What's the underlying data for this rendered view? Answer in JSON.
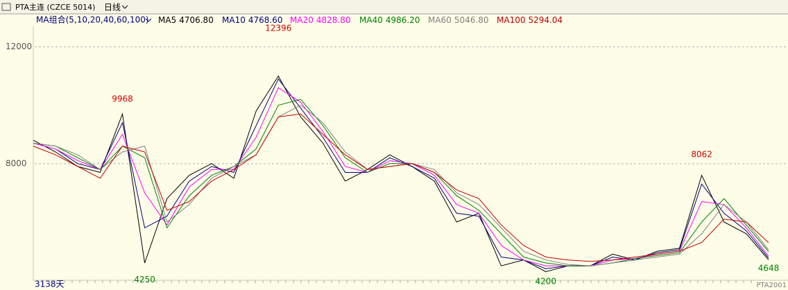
{
  "toolbar": {
    "symbol": "PTA主连 (CZCE 5014)",
    "period": "日线"
  },
  "chart_data": {
    "type": "line",
    "ma_group": "MA组合(5,10,20,40,60,100)",
    "ylim": [
      4100,
      12700
    ],
    "yticks": [
      8000,
      12000
    ],
    "grid": true,
    "categories": [
      null,
      null,
      null,
      null,
      null,
      null,
      null,
      null,
      null,
      null,
      null,
      null,
      null,
      null,
      null,
      null,
      null,
      null,
      null,
      null,
      null,
      null,
      null,
      null,
      null,
      null,
      null,
      null,
      null,
      null,
      null,
      null,
      null,
      null
    ],
    "series": [
      {
        "name": "MA5",
        "color": "#000000",
        "last_label": "4706.80",
        "values": [
          8800,
          8400,
          7900,
          7700,
          9700,
          4600,
          6800,
          7600,
          8000,
          7500,
          9800,
          11000,
          9600,
          8700,
          7400,
          7800,
          8300,
          7900,
          7400,
          6000,
          6300,
          4500,
          4700,
          4300,
          4500,
          4500,
          4900,
          4700,
          5000,
          5100,
          7600,
          6000,
          5600,
          4706.8
        ]
      },
      {
        "name": "MA10",
        "color": "#000080",
        "last_label": "4768.60",
        "values": [
          8700,
          8500,
          8000,
          7800,
          9400,
          5800,
          6200,
          7400,
          7900,
          7700,
          9300,
          10900,
          9900,
          8900,
          7700,
          7700,
          8200,
          7900,
          7500,
          6300,
          6200,
          4800,
          4700,
          4400,
          4500,
          4500,
          4800,
          4700,
          4950,
          5050,
          7300,
          6300,
          5700,
          4768.6
        ]
      },
      {
        "name": "MA20",
        "color": "#ff00ff",
        "last_label": "4828.80",
        "values": [
          8700,
          8500,
          8100,
          7800,
          9000,
          7000,
          5900,
          7200,
          7800,
          7800,
          8900,
          10600,
          10100,
          9100,
          7900,
          7700,
          8100,
          8000,
          7600,
          6600,
          6300,
          5200,
          4700,
          4500,
          4500,
          4500,
          4700,
          4750,
          4900,
          5000,
          6700,
          6600,
          5800,
          4828.8
        ]
      },
      {
        "name": "MA40",
        "color": "#008000",
        "last_label": "4986.20",
        "values": [
          8700,
          8600,
          8200,
          7800,
          8600,
          8200,
          5800,
          6900,
          7600,
          7900,
          8500,
          10000,
          10200,
          9300,
          8200,
          7700,
          8000,
          8000,
          7700,
          6900,
          6400,
          5600,
          4800,
          4600,
          4500,
          4500,
          4600,
          4750,
          4850,
          4950,
          6000,
          6800,
          5900,
          4986.2
        ]
      },
      {
        "name": "MA60",
        "color": "#808080",
        "last_label": "5046.80",
        "values": [
          8700,
          8600,
          8300,
          7800,
          8400,
          8600,
          6000,
          6600,
          7500,
          7900,
          8300,
          9600,
          10000,
          9400,
          8400,
          7800,
          7900,
          8000,
          7800,
          7000,
          6600,
          5800,
          5000,
          4700,
          4550,
          4500,
          4600,
          4700,
          4800,
          4900,
          5600,
          6600,
          6000,
          5046.8
        ]
      },
      {
        "name": "MA100",
        "color": "#c00000",
        "last_label": "5294.04",
        "values": [
          8600,
          8300,
          7900,
          7500,
          8600,
          8400,
          6400,
          6700,
          7400,
          7800,
          8300,
          9600,
          9700,
          9000,
          8300,
          7800,
          7900,
          8000,
          7700,
          7100,
          6800,
          5900,
          5200,
          4800,
          4700,
          4650,
          4700,
          4800,
          4900,
          5000,
          5300,
          6100,
          6000,
          5294.04
        ]
      }
    ],
    "annotations": [
      {
        "value": 9968,
        "index": 4,
        "color": "#d00000"
      },
      {
        "value": 4250,
        "index": 5,
        "color": "#008000"
      },
      {
        "value": 12396,
        "index": 11,
        "color": "#d00000"
      },
      {
        "value": 4200,
        "index": 23,
        "color": "#008000"
      },
      {
        "value": 8062,
        "index": 30,
        "color": "#d00000"
      },
      {
        "value": 4648,
        "index": 33,
        "color": "#008000"
      }
    ],
    "bar_count": "3138天",
    "contract": "PTA2001"
  }
}
